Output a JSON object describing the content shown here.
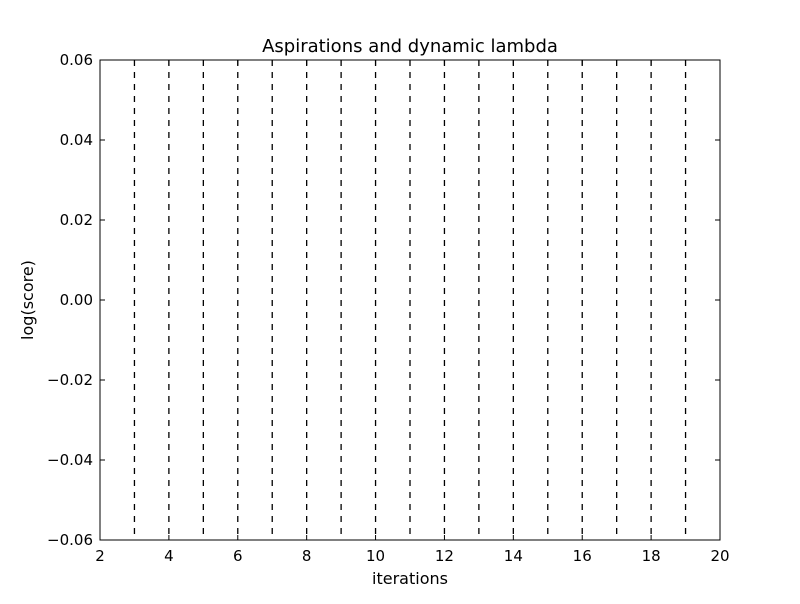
{
  "chart_data": {
    "type": "line",
    "title": "Aspirations and dynamic lambda",
    "xlabel": "iterations",
    "ylabel": "log(score)",
    "xlim": [
      2,
      20
    ],
    "ylim": [
      -0.06,
      0.06
    ],
    "x_ticks": [
      2,
      4,
      6,
      8,
      10,
      12,
      14,
      16,
      18,
      20
    ],
    "x_tick_labels": [
      "2",
      "4",
      "6",
      "8",
      "10",
      "12",
      "14",
      "16",
      "18",
      "20"
    ],
    "y_ticks": [
      -0.06,
      -0.04,
      -0.02,
      0.0,
      0.02,
      0.04,
      0.06
    ],
    "y_tick_labels": [
      "−0.06",
      "−0.04",
      "−0.02",
      "0.00",
      "0.02",
      "0.04",
      "0.06"
    ],
    "vertical_dashed_lines_x": [
      3,
      4,
      5,
      6,
      7,
      8,
      9,
      10,
      11,
      12,
      13,
      14,
      15,
      16,
      17,
      18,
      19
    ],
    "series": [],
    "grid": false,
    "colors": {
      "axis": "#000000",
      "vline": "#000000",
      "background": "#ffffff"
    }
  }
}
